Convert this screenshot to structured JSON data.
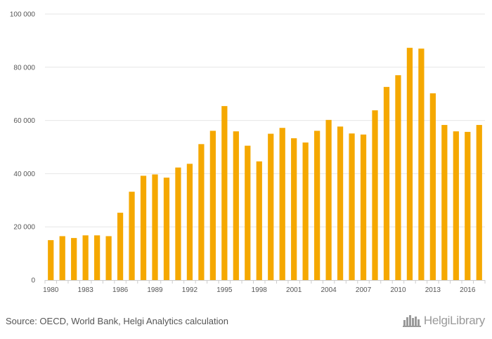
{
  "chart_data": {
    "type": "bar",
    "title": "",
    "xlabel": "",
    "ylabel": "",
    "ylim": [
      0,
      100000
    ],
    "yticks": [
      0,
      20000,
      40000,
      60000,
      80000,
      100000
    ],
    "ytick_labels": [
      "0",
      "20 000",
      "40 000",
      "60 000",
      "80 000",
      "100 000"
    ],
    "grid": true,
    "bar_color": "#F5A800",
    "categories": [
      "1980",
      "1981",
      "1982",
      "1983",
      "1984",
      "1985",
      "1986",
      "1987",
      "1988",
      "1989",
      "1990",
      "1991",
      "1992",
      "1993",
      "1994",
      "1995",
      "1996",
      "1997",
      "1998",
      "1999",
      "2000",
      "2001",
      "2002",
      "2003",
      "2004",
      "2005",
      "2006",
      "2007",
      "2008",
      "2009",
      "2010",
      "2011",
      "2012",
      "2013",
      "2014",
      "2015",
      "2016",
      "2017"
    ],
    "xtick_labels": [
      "1980",
      "1983",
      "1986",
      "1989",
      "1992",
      "1995",
      "1998",
      "2001",
      "2004",
      "2007",
      "2010",
      "2013",
      "2016"
    ],
    "values": [
      15000,
      16500,
      15800,
      16800,
      16800,
      16500,
      25300,
      33200,
      39200,
      39700,
      38500,
      42300,
      43700,
      51100,
      56100,
      65400,
      55900,
      50500,
      44600,
      55000,
      57200,
      53300,
      51700,
      56100,
      60200,
      57700,
      55100,
      54700,
      63800,
      72600,
      77000,
      87300,
      87000,
      70200,
      58300,
      55900,
      55700,
      58300
    ]
  },
  "footer": {
    "source": "Source: OECD, World Bank, Helgi Analytics calculation",
    "logo_text": "HelgiLibrary",
    "logo_icon": "city-skyline-icon"
  }
}
